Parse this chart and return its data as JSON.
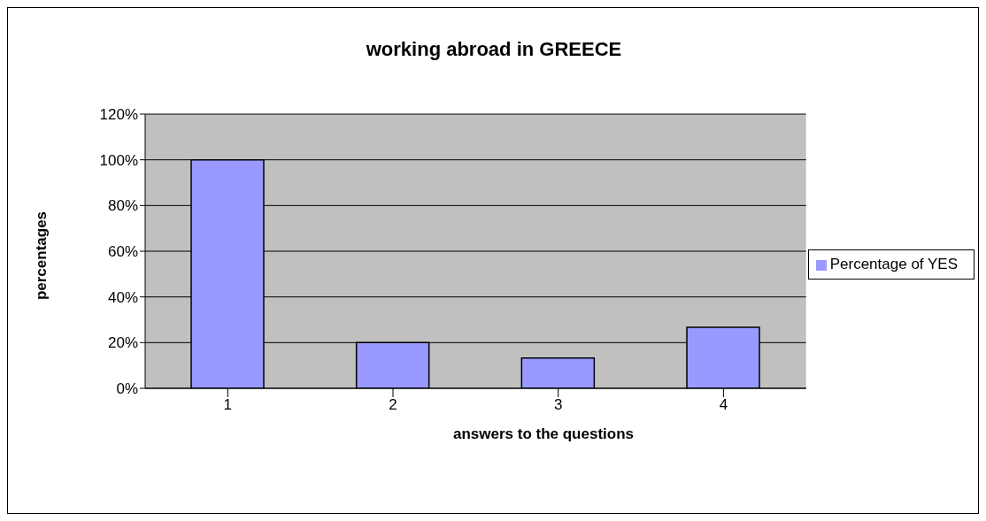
{
  "chart_data": {
    "type": "bar",
    "title": "working abroad in GREECE",
    "xlabel": "answers to the questions",
    "ylabel": "percentages",
    "categories": [
      "1",
      "2",
      "3",
      "4"
    ],
    "series": [
      {
        "name": "Percentage of YES",
        "color": "#9999ff",
        "values": [
          100,
          20,
          13.3,
          26.7
        ]
      }
    ],
    "ylim": [
      0,
      120
    ],
    "yticks": [
      {
        "value": 0,
        "label": "0%"
      },
      {
        "value": 20,
        "label": "20%"
      },
      {
        "value": 40,
        "label": "40%"
      },
      {
        "value": 60,
        "label": "60%"
      },
      {
        "value": 80,
        "label": "80%"
      },
      {
        "value": 100,
        "label": "100%"
      },
      {
        "value": 120,
        "label": "120%"
      }
    ],
    "grid": "y",
    "legend": "right"
  }
}
